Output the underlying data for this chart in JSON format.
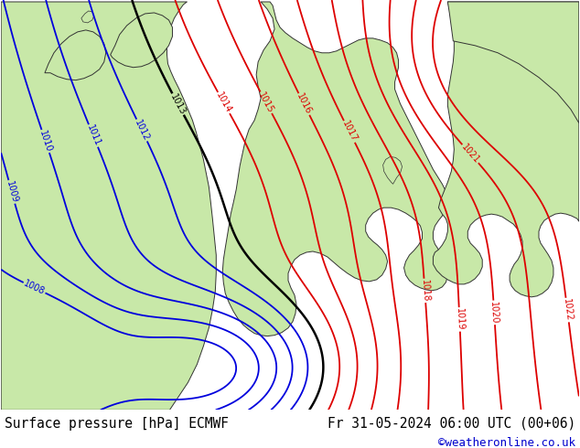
{
  "title_left": "Surface pressure [hPa] ECMWF",
  "title_right": "Fr 31-05-2024 06:00 UTC (00+06)",
  "credit": "©weatheronline.co.uk",
  "ocean_color": "#d0d0d0",
  "land_color": "#c8e8a8",
  "border_color": "#333333",
  "isobar_blue": "#0000dd",
  "isobar_black": "#000000",
  "isobar_red": "#dd0000",
  "title_fontsize": 10.5,
  "credit_fontsize": 9,
  "label_fontsize": 7
}
